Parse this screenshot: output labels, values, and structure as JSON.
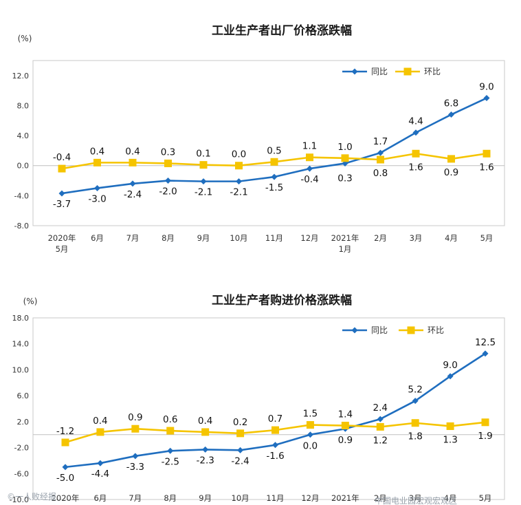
{
  "colors": {
    "yoy": "#1f6ebf",
    "mom": "#f5c400",
    "frame": "#c9c9c9",
    "zero": "#bfbfbf"
  },
  "watermark": {
    "left": "©一人败经报",
    "right": "中国电业园宏观宏观区"
  },
  "chart_data": [
    {
      "type": "line",
      "title": "工业生产者出厂价格涨跌幅",
      "unit": "(%)",
      "ylim": [
        -8.0,
        14.0
      ],
      "yticks": [
        "12.0",
        "8.0",
        "4.0",
        "0.0",
        "-4.0",
        "-8.0"
      ],
      "ytick_values": [
        12,
        8,
        4,
        0,
        -4,
        -8
      ],
      "categories": [
        "2020年\n5月",
        "6月",
        "7月",
        "8月",
        "9月",
        "10月",
        "11月",
        "12月",
        "2021年\n1月",
        "2月",
        "3月",
        "4月",
        "5月"
      ],
      "legend": [
        "同比",
        "环比"
      ],
      "series": [
        {
          "name": "同比",
          "values": [
            -3.7,
            -3.0,
            -2.4,
            -2.0,
            -2.1,
            -2.1,
            -1.5,
            -0.4,
            0.3,
            1.7,
            4.4,
            6.8,
            9.0
          ],
          "labels": [
            "-3.7",
            "-3.0",
            "-2.4",
            "-2.0",
            "-2.1",
            "-2.1",
            "-1.5",
            "-0.4",
            "0.3",
            "1.7",
            "4.4",
            "6.8",
            "9.0"
          ]
        },
        {
          "name": "环比",
          "values": [
            -0.4,
            0.4,
            0.4,
            0.3,
            0.1,
            0.0,
            0.5,
            1.1,
            1.0,
            0.8,
            1.6,
            0.9,
            1.6
          ],
          "labels": [
            "-0.4",
            "0.4",
            "0.4",
            "0.3",
            "0.1",
            "0.0",
            "0.5",
            "1.1",
            "1.0",
            "0.8",
            "1.6",
            "0.9",
            "1.6"
          ]
        }
      ]
    },
    {
      "type": "line",
      "title": "工业生产者购进价格涨跌幅",
      "unit": "(%)",
      "ylim": [
        -10.0,
        18.0
      ],
      "yticks": [
        "18.0",
        "14.0",
        "10.0",
        "6.0",
        "2.0",
        "-2.0",
        "-6.0",
        "-10.0"
      ],
      "ytick_values": [
        18,
        14,
        10,
        6,
        2,
        -2,
        -6,
        -10
      ],
      "categories": [
        "2020年",
        "6月",
        "7月",
        "8月",
        "9月",
        "10月",
        "11月",
        "12月",
        "2021年",
        "2月",
        "3月",
        "4月",
        "5月"
      ],
      "legend": [
        "同比",
        "环比"
      ],
      "series": [
        {
          "name": "同比",
          "values": [
            -5.0,
            -4.4,
            -3.3,
            -2.5,
            -2.3,
            -2.4,
            -1.6,
            0.0,
            0.9,
            2.4,
            5.2,
            9.0,
            12.5
          ],
          "labels": [
            "-5.0",
            "-4.4",
            "-3.3",
            "-2.5",
            "-2.3",
            "-2.4",
            "-1.6",
            "0.0",
            "0.9",
            "2.4",
            "5.2",
            "9.0",
            "12.5"
          ]
        },
        {
          "name": "环比",
          "values": [
            -1.2,
            0.4,
            0.9,
            0.6,
            0.4,
            0.2,
            0.7,
            1.5,
            1.4,
            1.2,
            1.8,
            1.3,
            1.9
          ],
          "labels": [
            "-1.2",
            "0.4",
            "0.9",
            "0.6",
            "0.4",
            "0.2",
            "0.7",
            "1.5",
            "1.4",
            "1.2",
            "1.8",
            "1.3",
            "1.9"
          ]
        }
      ]
    }
  ]
}
